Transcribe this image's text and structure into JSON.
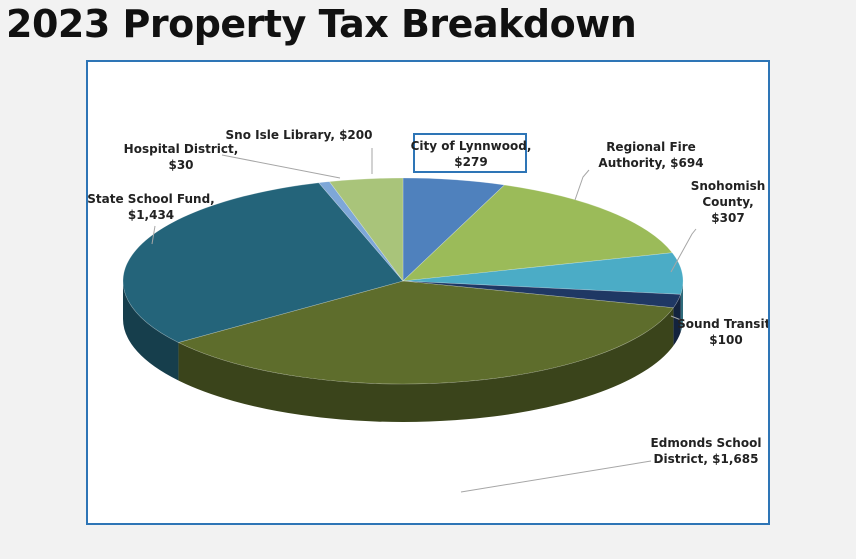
{
  "page": {
    "title": "2023 Property Tax Breakdown"
  },
  "chart_data": {
    "type": "pie",
    "title": "",
    "style": "3d-exploded-none",
    "legend": "none",
    "slices": [
      {
        "name": "City of Lynnwood",
        "value": 279,
        "label_lines": [
          "City of Lynnwood,",
          "$279"
        ],
        "color": "#4f81bd",
        "highlighted": true
      },
      {
        "name": "Regional Fire Authority",
        "value": 694,
        "label_lines": [
          "Regional Fire",
          "Authority,  $694"
        ],
        "color": "#9bbb59"
      },
      {
        "name": "Snohomish County",
        "value": 307,
        "label_lines": [
          "Snohomish",
          "County,",
          "$307"
        ],
        "color": "#4bacc6"
      },
      {
        "name": "Sound Transit",
        "value": 100,
        "label_lines": [
          "Sound Transit,",
          "$100"
        ],
        "color": "#1f3864"
      },
      {
        "name": "Edmonds School District",
        "value": 1685,
        "label_lines": [
          "Edmonds School",
          "District,  $1,685"
        ],
        "color": "#5e6d2c"
      },
      {
        "name": "State School Fund",
        "value": 1434,
        "label_lines": [
          "State School Fund,",
          "$1,434"
        ],
        "color": "#24647a"
      },
      {
        "name": "Hospital District",
        "value": 30,
        "label_lines": [
          "Hospital District,",
          "$30"
        ],
        "color": "#7ea7d8"
      },
      {
        "name": "Sno Isle Library",
        "value": 200,
        "label_lines": [
          "Sno Isle Library,  $200"
        ],
        "color": "#a9c47a"
      }
    ]
  }
}
